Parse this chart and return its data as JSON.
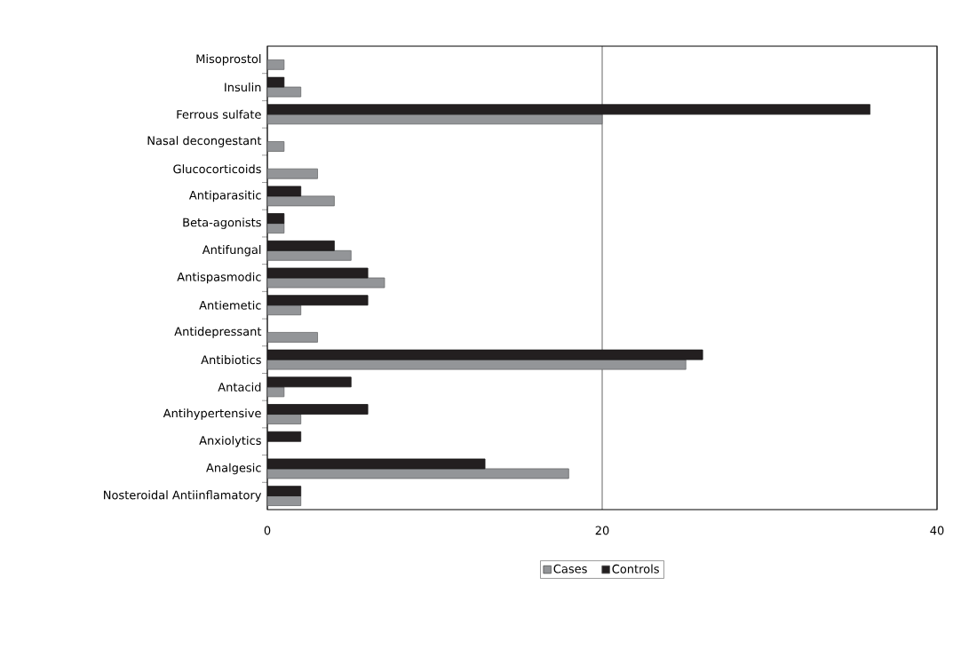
{
  "chart_data": {
    "type": "bar",
    "orientation": "horizontal",
    "categories": [
      "Misoprostol",
      "Insulin",
      "Ferrous sulfate",
      "Nasal decongestant",
      "Glucocorticoids",
      "Antiparasitic",
      "Beta-agonists",
      "Antifungal",
      "Antispasmodic",
      "Antiemetic",
      "Antidepressant",
      "Antibiotics",
      "Antacid",
      "Antihypertensive",
      "Anxiolytics",
      "Analgesic",
      "Nosteroidal Antiinflamatory"
    ],
    "series": [
      {
        "name": "Cases",
        "color": "#939598",
        "values": [
          1,
          2,
          20,
          1,
          3,
          4,
          1,
          5,
          7,
          2,
          3,
          25,
          1,
          2,
          null,
          18,
          2
        ]
      },
      {
        "name": "Controls",
        "color": "#231f20",
        "values": [
          null,
          1,
          36,
          null,
          null,
          2,
          1,
          4,
          6,
          6,
          null,
          26,
          5,
          6,
          2,
          13,
          2
        ]
      }
    ],
    "xlim": [
      0,
      40
    ],
    "xticks": [
      0,
      20,
      40
    ],
    "grid": "x",
    "legend": "bottom"
  }
}
